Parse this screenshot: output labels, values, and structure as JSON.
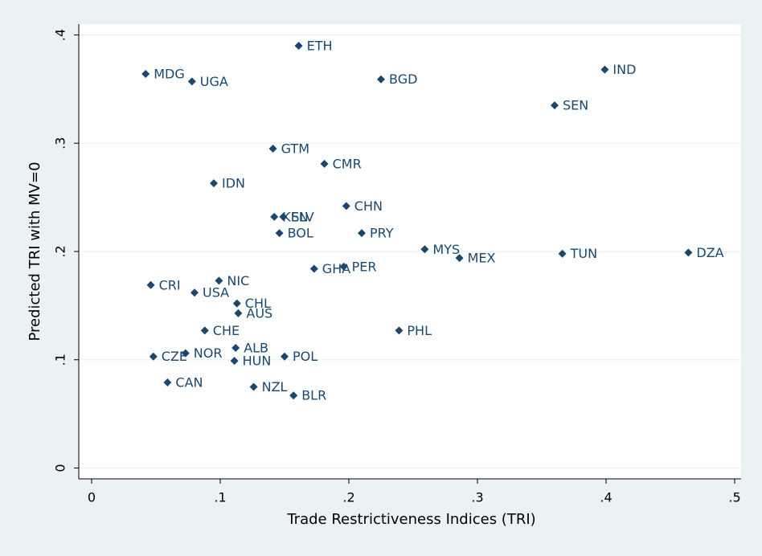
{
  "chart_data": {
    "type": "scatter",
    "x_label": "Trade Restrictiveness Indices (TRI)",
    "y_label": "Predicted TRI with MV=0",
    "color": "#1a476f",
    "grid": true,
    "xlim": [
      -0.01,
      0.505
    ],
    "ylim": [
      -0.01,
      0.41
    ],
    "xticks": [
      0,
      {
        "value": 0.1,
        "label": ".1"
      },
      {
        "value": 0.2,
        "label": ".2"
      },
      {
        "value": 0.3,
        "label": ".3"
      },
      {
        "value": 0.4,
        "label": ".4"
      },
      {
        "value": 0.5,
        "label": ".5"
      }
    ],
    "yticks": [
      0,
      {
        "value": 0.1,
        "label": ".1"
      },
      {
        "value": 0.2,
        "label": ".2"
      },
      {
        "value": 0.3,
        "label": ".3"
      },
      {
        "value": 0.4,
        "label": ".4"
      }
    ],
    "labels": [
      "ETH",
      "MDG",
      "UGA",
      "BGD",
      "IND",
      "SEN",
      "GTM",
      "CMR",
      "IDN",
      "CHN",
      "KEN",
      "SLV",
      "BOL",
      "PRY",
      "MYS",
      "MEX",
      "TUN",
      "DZA",
      "GHA",
      "PER",
      "CRI",
      "NIC",
      "USA",
      "CHL",
      "AUS",
      "CHE",
      "PHL",
      "ALB",
      "CZE",
      "NOR",
      "HUN",
      "POL",
      "CAN",
      "NZL",
      "BLR"
    ],
    "x": [
      0.161,
      0.042,
      0.078,
      0.225,
      0.399,
      0.36,
      0.141,
      0.181,
      0.095,
      0.198,
      0.142,
      0.149,
      0.146,
      0.21,
      0.259,
      0.286,
      0.366,
      0.464,
      0.173,
      0.196,
      0.046,
      0.099,
      0.08,
      0.113,
      0.114,
      0.088,
      0.239,
      0.112,
      0.048,
      0.073,
      0.111,
      0.15,
      0.059,
      0.126,
      0.157
    ],
    "y": [
      0.39,
      0.364,
      0.357,
      0.359,
      0.368,
      0.335,
      0.295,
      0.281,
      0.263,
      0.242,
      0.232,
      0.232,
      0.217,
      0.217,
      0.202,
      0.194,
      0.198,
      0.199,
      0.184,
      0.186,
      0.169,
      0.173,
      0.162,
      0.152,
      0.143,
      0.127,
      0.127,
      0.111,
      0.103,
      0.106,
      0.099,
      0.103,
      0.079,
      0.075,
      0.067
    ]
  }
}
